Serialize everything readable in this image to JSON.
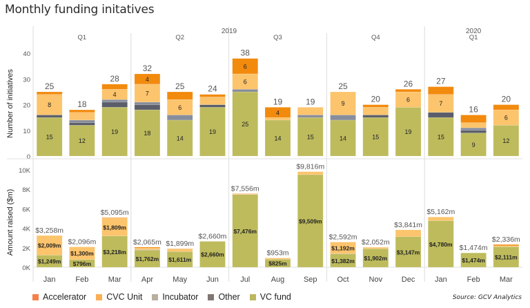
{
  "title": "Monthly funding initatives",
  "source": "Source: GCV Analytics",
  "colors": {
    "Accelerator": "#f28a0e",
    "CVC Unit": "#fcc46c",
    "Incubator": "#878d9a",
    "Other": "#5b5e6a",
    "VC fund": "#bebb5d",
    "legend_Accelerator": "#f5804a",
    "legend_CVC Unit": "#fcae55",
    "legend_Incubator": "#b9aea0",
    "legend_Other": "#7f7773",
    "legend_VC fund": "#bdb85f"
  },
  "legend": [
    {
      "label": "Accelerator"
    },
    {
      "label": "CVC Unit"
    },
    {
      "label": "Incubator"
    },
    {
      "label": "Other"
    },
    {
      "label": "VC fund"
    }
  ],
  "chart_data": [
    {
      "type": "bar",
      "stacked": true,
      "title": "Monthly funding initatives",
      "ylabel": "Number of initiatives",
      "xlabel": "",
      "ylim": [
        0,
        43
      ],
      "yticks": [
        "0",
        "10",
        "20",
        "30",
        "40"
      ],
      "ytick_values": [
        0,
        10,
        20,
        30,
        40
      ],
      "year_labels": [
        {
          "label": "2019",
          "after_quarter": 1
        },
        {
          "label": "2020",
          "quarter": 4
        }
      ],
      "quarters": [
        {
          "label": "Q1",
          "year": "2019",
          "months": 3
        },
        {
          "label": "Q2",
          "year": "2019",
          "months": 3
        },
        {
          "label": "Q3",
          "year": "2019",
          "months": 3
        },
        {
          "label": "Q4",
          "year": "2019",
          "months": 3
        },
        {
          "label": "Q1",
          "year": "2020",
          "months": 3
        }
      ],
      "categories": [
        "Jan",
        "Feb",
        "Mar",
        "Apr",
        "May",
        "Jun",
        "Jul",
        "Aug",
        "Sep",
        "Oct",
        "Nov",
        "Dec",
        "Jan",
        "Feb",
        "Mar"
      ],
      "totals": [
        25,
        18,
        28,
        32,
        25,
        24,
        38,
        19,
        19,
        25,
        20,
        26,
        27,
        16,
        20
      ],
      "series": [
        {
          "name": "VC fund",
          "values": [
            15,
            12,
            19,
            18,
            14,
            19,
            25,
            14,
            15,
            14,
            15,
            19,
            15,
            9,
            12
          ],
          "labels": [
            "15",
            "12",
            "19",
            "18",
            "14",
            "19",
            "25",
            "14",
            "15",
            "14",
            "15",
            "19",
            "15",
            "9",
            "12"
          ]
        },
        {
          "name": "Other",
          "values": [
            1,
            1,
            2,
            2,
            0,
            1,
            0,
            0,
            0,
            0,
            1,
            0,
            2,
            1,
            0
          ],
          "labels": []
        },
        {
          "name": "Incubator",
          "values": [
            0,
            1,
            1,
            1,
            2,
            0,
            1,
            0,
            1,
            2,
            0,
            0,
            0,
            1,
            0
          ],
          "labels": []
        },
        {
          "name": "CVC Unit",
          "values": [
            8,
            3,
            4,
            7,
            6,
            3,
            6,
            1,
            3,
            9,
            3,
            6,
            7,
            2,
            6
          ],
          "labels": [
            "8",
            "",
            "4",
            "7",
            "6",
            "",
            "6",
            "",
            "",
            "9",
            "",
            "6",
            "7",
            "",
            "6"
          ]
        },
        {
          "name": "Accelerator",
          "values": [
            1,
            1,
            2,
            4,
            3,
            1,
            6,
            4,
            0,
            0,
            1,
            1,
            3,
            3,
            2
          ],
          "labels": [
            "",
            "",
            "",
            "4",
            "",
            "",
            "6",
            "4",
            "",
            "",
            "",
            "",
            "",
            "",
            ""
          ]
        }
      ]
    },
    {
      "type": "bar",
      "stacked": true,
      "title": "",
      "ylabel": "Amount raised ($m)",
      "xlabel": "",
      "ylim": [
        0,
        10500
      ],
      "yticks": [
        "0K",
        "2K",
        "4K",
        "6K",
        "8K",
        "10K"
      ],
      "ytick_values": [
        0,
        2000,
        4000,
        6000,
        8000,
        10000
      ],
      "categories": [
        "Jan",
        "Feb",
        "Mar",
        "Apr",
        "May",
        "Jun",
        "Jul",
        "Aug",
        "Sep",
        "Oct",
        "Nov",
        "Dec",
        "Jan",
        "Feb",
        "Mar"
      ],
      "totals": [
        "$3,258m",
        "$2,096m",
        "$5,095m",
        "$2,065m",
        "$1,899m",
        "$2,660m",
        "$7,556m",
        "$953m",
        "$9,816m",
        "$2,592m",
        "$2,052m",
        "$3,841m",
        "$5,162m",
        "$1,474m",
        "$2,336m"
      ],
      "total_values": [
        3258,
        2096,
        5095,
        2065,
        1899,
        2660,
        7556,
        953,
        9816,
        2592,
        2052,
        3841,
        5162,
        1474,
        2336
      ],
      "series": [
        {
          "name": "VC fund",
          "values": [
            1249,
            796,
            3218,
            1762,
            1611,
            2660,
            7476,
            825,
            9509,
            1382,
            1902,
            3147,
            4780,
            1474,
            2111
          ],
          "labels": [
            "$1,249m",
            "$796m",
            "$3,218m",
            "$1,762m",
            "$1,611m",
            "$2,660m",
            "$7,476m",
            "$825m",
            "$9,509m",
            "$1,382m",
            "$1,902m",
            "$3,147m",
            "$4,780m",
            "$1,474m",
            "$2,111m"
          ]
        },
        {
          "name": "Other",
          "values": [
            0,
            0,
            0,
            0,
            0,
            0,
            0,
            0,
            0,
            18,
            0,
            0,
            0,
            0,
            0
          ],
          "labels": []
        },
        {
          "name": "Incubator",
          "values": [
            0,
            0,
            0,
            40,
            0,
            0,
            0,
            0,
            0,
            0,
            0,
            0,
            0,
            0,
            0
          ],
          "labels": []
        },
        {
          "name": "CVC Unit",
          "values": [
            2009,
            1300,
            1809,
            163,
            238,
            0,
            30,
            128,
            307,
            1192,
            150,
            694,
            382,
            0,
            95
          ],
          "labels": [
            "$2,009m",
            "$1,300m",
            "$1,809m",
            "",
            "",
            "",
            "",
            "",
            "",
            "$1,192m",
            "",
            "",
            "",
            "",
            ""
          ]
        },
        {
          "name": "Accelerator",
          "values": [
            0,
            0,
            68,
            100,
            50,
            0,
            50,
            0,
            0,
            0,
            0,
            0,
            0,
            0,
            130
          ],
          "labels": []
        }
      ]
    }
  ]
}
